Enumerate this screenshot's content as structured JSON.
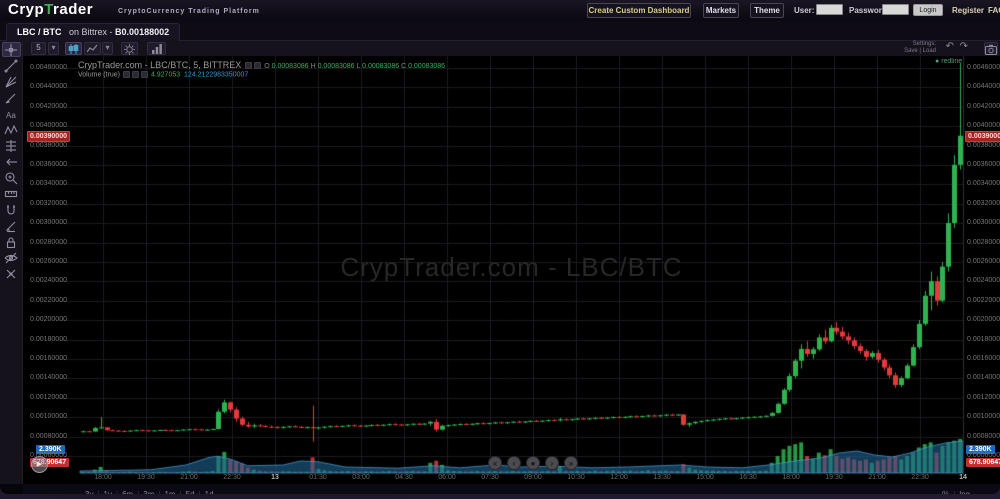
{
  "header": {
    "logo_part1": "Cryp",
    "logo_part2": "T",
    "logo_part3": "rader",
    "subtitle": "CryptoCurrency Trading Platform",
    "dashboard_button": "Create Custom Dashboard",
    "markets_button": "Markets",
    "theme_button": "Theme",
    "user_label": "User:",
    "password_label": "Password:",
    "login_button": "Login",
    "register_link": "Register",
    "faq_link": "FAQ"
  },
  "tab": {
    "pair": "LBC / BTC",
    "exchange_prefix": "on Bittrex -",
    "price_symbol": "B",
    "price": "0.00188002"
  },
  "toolbar": {
    "interval": "5",
    "settings_label": "Settings:",
    "save_load_label": "Save | Load"
  },
  "legend": {
    "title": "CrypTrader.com - LBC/BTC, 5, BITTREX",
    "o_label": "O",
    "o_value": "0.00083086",
    "h_label": "H",
    "h_value": "0.00083086",
    "l_label": "L",
    "l_value": "0.00083086",
    "c_label": "C",
    "c_value": "0.00083086",
    "volume_label": "Volume (true)",
    "volume_value": "4.927053",
    "volume_quote_value": "124.2122983350007",
    "redline_label": "redline"
  },
  "watermark": "CrypTrader.com - LBC/BTC",
  "badges": {
    "volume_badge": "2.390K",
    "lower_price_badge": "678.90647"
  },
  "sidebar_tools": [
    "crosshair",
    "trend-line",
    "gann-fib",
    "brush",
    "text",
    "xabcd-pattern",
    "forecast",
    "arrow-left",
    "zoom-in",
    "measure",
    "magnet",
    "draw-pencil",
    "lock",
    "hide-drawings",
    "remove-drawings"
  ],
  "range_buttons": [
    "3y",
    "1y",
    "6m",
    "3m",
    "1m",
    "5d",
    "1d"
  ],
  "scale_buttons": [
    "%",
    "log"
  ],
  "nav_buttons": [
    "fast-backward",
    "step-backward",
    "reset-view",
    "step-forward",
    "fast-forward"
  ],
  "colors": {
    "candle_green": "#2eb350",
    "candle_red": "#e03c3c",
    "badge_blue": "#1669c9",
    "badge_red": "#c03030",
    "legend_green": "#3fae5a",
    "legend_blue": "#2e9bd6",
    "logo_green": "#3fae5a",
    "volume_area_blue": "#1e6492"
  },
  "chart_data": {
    "type": "candlestick",
    "symbol": "LBC/BTC",
    "exchange": "BITTREX",
    "interval": "5",
    "price_multiplier": 1e-06,
    "price_axis_labels": [
      "0.00460000",
      "0.00440000",
      "0.00420000",
      "0.00400000",
      "0.00390000",
      "0.00380000",
      "0.00360000",
      "0.00340000",
      "0.00320000",
      "0.00300000",
      "0.00280000",
      "0.00260000",
      "0.00240000",
      "0.00220000",
      "0.00200000",
      "0.00180000",
      "0.00160000",
      "0.00140000",
      "0.00120000",
      "0.00100000",
      "0.00080000",
      "0.00060000"
    ],
    "current_price_label": "0.00390000",
    "time_axis": [
      "18:00",
      "19:30",
      "21:00",
      "22:30",
      "13",
      "01:30",
      "03:00",
      "04:30",
      "06:00",
      "07:30",
      "09:00",
      "10:30",
      "12:00",
      "13:30",
      "15:00",
      "16:30",
      "18:00",
      "19:30",
      "21:00",
      "22:30",
      "14"
    ],
    "date_tick_labels": [
      "13",
      "14"
    ],
    "ohlc_hover": {
      "o": "0.00083086",
      "h": "0.00083086",
      "l": "0.00083086",
      "c": "0.00083086"
    },
    "candles": [
      [
        850,
        862,
        845,
        855,
        0.04
      ],
      [
        855,
        860,
        848,
        852,
        0.03
      ],
      [
        852,
        900,
        850,
        888,
        0.1
      ],
      [
        888,
        1000,
        882,
        895,
        0.18
      ],
      [
        895,
        898,
        860,
        866,
        0.06
      ],
      [
        866,
        872,
        856,
        862,
        0.03
      ],
      [
        862,
        868,
        852,
        858,
        0.02
      ],
      [
        858,
        864,
        850,
        854,
        0.03
      ],
      [
        854,
        866,
        852,
        862,
        0.04
      ],
      [
        862,
        872,
        858,
        866,
        0.03
      ],
      [
        866,
        874,
        860,
        864,
        0.03
      ],
      [
        864,
        870,
        856,
        860,
        0.02
      ],
      [
        860,
        868,
        854,
        864,
        0.03
      ],
      [
        864,
        872,
        858,
        868,
        0.04
      ],
      [
        868,
        876,
        862,
        866,
        0.03
      ],
      [
        866,
        872,
        858,
        862,
        0.02
      ],
      [
        862,
        870,
        856,
        866,
        0.03
      ],
      [
        866,
        876,
        862,
        872,
        0.04
      ],
      [
        872,
        880,
        866,
        876,
        0.05
      ],
      [
        876,
        884,
        870,
        874,
        0.04
      ],
      [
        874,
        880,
        866,
        870,
        0.03
      ],
      [
        870,
        878,
        864,
        872,
        0.04
      ],
      [
        872,
        882,
        868,
        878,
        0.06
      ],
      [
        878,
        1080,
        874,
        1056,
        0.5
      ],
      [
        1056,
        1180,
        1040,
        1152,
        0.62
      ],
      [
        1152,
        1164,
        1048,
        1078,
        0.4
      ],
      [
        1078,
        1102,
        952,
        986,
        0.34
      ],
      [
        986,
        1004,
        906,
        922,
        0.28
      ],
      [
        922,
        952,
        892,
        904,
        0.16
      ],
      [
        904,
        932,
        888,
        916,
        0.1
      ],
      [
        916,
        928,
        900,
        908,
        0.07
      ],
      [
        908,
        920,
        896,
        902,
        0.05
      ],
      [
        902,
        914,
        890,
        898,
        0.05
      ],
      [
        898,
        910,
        884,
        892,
        0.04
      ],
      [
        892,
        906,
        882,
        900,
        0.05
      ],
      [
        900,
        912,
        892,
        906,
        0.05
      ],
      [
        906,
        916,
        896,
        900,
        0.04
      ],
      [
        900,
        910,
        888,
        894,
        0.04
      ],
      [
        894,
        904,
        884,
        898,
        0.04
      ],
      [
        898,
        1120,
        748,
        886,
        0.46
      ],
      [
        886,
        902,
        874,
        894,
        0.12
      ],
      [
        894,
        908,
        884,
        902,
        0.08
      ],
      [
        902,
        914,
        892,
        908,
        0.06
      ],
      [
        908,
        918,
        898,
        904,
        0.05
      ],
      [
        904,
        914,
        894,
        910,
        0.05
      ],
      [
        910,
        922,
        900,
        916,
        0.06
      ],
      [
        916,
        926,
        906,
        912,
        0.05
      ],
      [
        912,
        920,
        902,
        908,
        0.04
      ],
      [
        908,
        918,
        898,
        914,
        0.05
      ],
      [
        914,
        924,
        904,
        920,
        0.05
      ],
      [
        920,
        930,
        910,
        916,
        0.04
      ],
      [
        916,
        926,
        906,
        922,
        0.05
      ],
      [
        922,
        934,
        912,
        928,
        0.06
      ],
      [
        928,
        938,
        918,
        924,
        0.05
      ],
      [
        924,
        932,
        914,
        920,
        0.04
      ],
      [
        920,
        930,
        910,
        926,
        0.05
      ],
      [
        926,
        938,
        916,
        932,
        0.06
      ],
      [
        932,
        942,
        922,
        928,
        0.05
      ],
      [
        928,
        938,
        918,
        934,
        0.05
      ],
      [
        934,
        962,
        912,
        952,
        0.3
      ],
      [
        952,
        980,
        852,
        872,
        0.36
      ],
      [
        872,
        922,
        862,
        912,
        0.24
      ],
      [
        912,
        924,
        902,
        918,
        0.08
      ],
      [
        918,
        930,
        908,
        924,
        0.06
      ],
      [
        924,
        936,
        914,
        930,
        0.06
      ],
      [
        930,
        940,
        920,
        926,
        0.05
      ],
      [
        926,
        936,
        916,
        932,
        0.05
      ],
      [
        932,
        944,
        922,
        938,
        0.06
      ],
      [
        938,
        948,
        928,
        934,
        0.05
      ],
      [
        934,
        944,
        924,
        940,
        0.05
      ],
      [
        940,
        952,
        930,
        946,
        0.06
      ],
      [
        946,
        956,
        936,
        942,
        0.05
      ],
      [
        942,
        952,
        932,
        948,
        0.05
      ],
      [
        948,
        960,
        938,
        954,
        0.06
      ],
      [
        954,
        964,
        944,
        950,
        0.05
      ],
      [
        950,
        960,
        940,
        956,
        0.05
      ],
      [
        956,
        968,
        946,
        962,
        0.06
      ],
      [
        962,
        972,
        952,
        958,
        0.05
      ],
      [
        958,
        968,
        948,
        964,
        0.05
      ],
      [
        964,
        976,
        954,
        970,
        0.06
      ],
      [
        970,
        980,
        960,
        966,
        0.05
      ],
      [
        966,
        992,
        956,
        978,
        0.2
      ],
      [
        978,
        988,
        968,
        974,
        0.06
      ],
      [
        974,
        984,
        964,
        980,
        0.05
      ],
      [
        980,
        992,
        970,
        986,
        0.06
      ],
      [
        986,
        996,
        976,
        982,
        0.05
      ],
      [
        982,
        992,
        972,
        988,
        0.05
      ],
      [
        988,
        1000,
        978,
        994,
        0.07
      ],
      [
        994,
        1004,
        984,
        990,
        0.05
      ],
      [
        990,
        1000,
        980,
        996,
        0.06
      ],
      [
        996,
        1008,
        986,
        1002,
        0.07
      ],
      [
        1002,
        1012,
        992,
        998,
        0.05
      ],
      [
        998,
        1008,
        988,
        1004,
        0.06
      ],
      [
        1004,
        1016,
        994,
        1010,
        0.07
      ],
      [
        1010,
        1020,
        1000,
        1006,
        0.05
      ],
      [
        1006,
        1016,
        996,
        1012,
        0.06
      ],
      [
        1012,
        1024,
        1002,
        1018,
        0.08
      ],
      [
        1018,
        1028,
        1008,
        1014,
        0.06
      ],
      [
        1014,
        1024,
        1004,
        1020,
        0.06
      ],
      [
        1020,
        1032,
        1010,
        1026,
        0.07
      ],
      [
        1026,
        1036,
        1016,
        1022,
        0.06
      ],
      [
        1022,
        1032,
        1012,
        1028,
        0.06
      ],
      [
        1028,
        1032,
        912,
        922,
        0.26
      ],
      [
        922,
        948,
        898,
        938,
        0.16
      ],
      [
        938,
        958,
        928,
        952,
        0.1
      ],
      [
        952,
        968,
        942,
        962,
        0.08
      ],
      [
        962,
        976,
        952,
        970,
        0.07
      ],
      [
        970,
        982,
        960,
        976,
        0.07
      ],
      [
        976,
        988,
        966,
        982,
        0.06
      ],
      [
        982,
        994,
        972,
        988,
        0.06
      ],
      [
        988,
        998,
        978,
        984,
        0.05
      ],
      [
        984,
        994,
        974,
        990,
        0.06
      ],
      [
        990,
        1002,
        980,
        996,
        0.06
      ],
      [
        996,
        1006,
        986,
        1000,
        0.06
      ],
      [
        1000,
        1010,
        990,
        1004,
        0.06
      ],
      [
        1004,
        1014,
        994,
        1008,
        0.06
      ],
      [
        1008,
        1020,
        998,
        1014,
        0.07
      ],
      [
        1014,
        1052,
        1008,
        1044,
        0.3
      ],
      [
        1044,
        1150,
        1036,
        1138,
        0.5
      ],
      [
        1138,
        1300,
        1128,
        1282,
        0.7
      ],
      [
        1282,
        1452,
        1262,
        1424,
        0.8
      ],
      [
        1424,
        1602,
        1402,
        1582,
        0.85
      ],
      [
        1582,
        1752,
        1502,
        1704,
        0.9
      ],
      [
        1704,
        1784,
        1622,
        1652,
        0.5
      ],
      [
        1652,
        1722,
        1602,
        1700,
        0.42
      ],
      [
        1700,
        1852,
        1682,
        1822,
        0.6
      ],
      [
        1822,
        1902,
        1752,
        1782,
        0.52
      ],
      [
        1782,
        1952,
        1772,
        1922,
        0.7
      ],
      [
        1922,
        1982,
        1852,
        1882,
        0.5
      ],
      [
        1882,
        1932,
        1802,
        1832,
        0.42
      ],
      [
        1832,
        1872,
        1752,
        1792,
        0.46
      ],
      [
        1792,
        1822,
        1702,
        1732,
        0.4
      ],
      [
        1732,
        1762,
        1652,
        1682,
        0.36
      ],
      [
        1682,
        1702,
        1582,
        1622,
        0.4
      ],
      [
        1622,
        1682,
        1602,
        1662,
        0.3
      ],
      [
        1662,
        1692,
        1562,
        1592,
        0.36
      ],
      [
        1592,
        1612,
        1482,
        1512,
        0.4
      ],
      [
        1512,
        1542,
        1402,
        1432,
        0.46
      ],
      [
        1432,
        1462,
        1302,
        1332,
        0.5
      ],
      [
        1332,
        1422,
        1312,
        1402,
        0.4
      ],
      [
        1402,
        1552,
        1392,
        1532,
        0.5
      ],
      [
        1532,
        1752,
        1522,
        1722,
        0.6
      ],
      [
        1722,
        2002,
        1702,
        1962,
        0.75
      ],
      [
        1962,
        2302,
        1942,
        2252,
        0.85
      ],
      [
        2252,
        2502,
        2102,
        2402,
        0.9
      ],
      [
        2402,
        2452,
        2152,
        2202,
        0.6
      ],
      [
        2202,
        2602,
        2182,
        2552,
        0.8
      ],
      [
        2552,
        3102,
        2502,
        3002,
        0.9
      ],
      [
        3002,
        3702,
        2952,
        3602,
        0.95
      ],
      [
        3602,
        4652,
        3552,
        3902,
        1.0
      ]
    ],
    "volume_area": [
      [
        0,
        0.05
      ],
      [
        0.08,
        0.08
      ],
      [
        0.12,
        0.2
      ],
      [
        0.145,
        0.38
      ],
      [
        0.155,
        0.42
      ],
      [
        0.17,
        0.35
      ],
      [
        0.19,
        0.18
      ],
      [
        0.23,
        0.2
      ],
      [
        0.25,
        0.3
      ],
      [
        0.27,
        0.28
      ],
      [
        0.3,
        0.15
      ],
      [
        0.36,
        0.12
      ],
      [
        0.4,
        0.18
      ],
      [
        0.43,
        0.13
      ],
      [
        0.47,
        0.2
      ],
      [
        0.5,
        0.15
      ],
      [
        0.54,
        0.17
      ],
      [
        0.58,
        0.13
      ],
      [
        0.62,
        0.15
      ],
      [
        0.68,
        0.2
      ],
      [
        0.71,
        0.15
      ],
      [
        0.75,
        0.13
      ],
      [
        0.78,
        0.2
      ],
      [
        0.81,
        0.3
      ],
      [
        0.84,
        0.38
      ],
      [
        0.86,
        0.5
      ],
      [
        0.88,
        0.55
      ],
      [
        0.9,
        0.45
      ],
      [
        0.92,
        0.4
      ],
      [
        0.94,
        0.5
      ],
      [
        0.96,
        0.65
      ],
      [
        0.98,
        0.75
      ],
      [
        1,
        0.8
      ]
    ]
  }
}
